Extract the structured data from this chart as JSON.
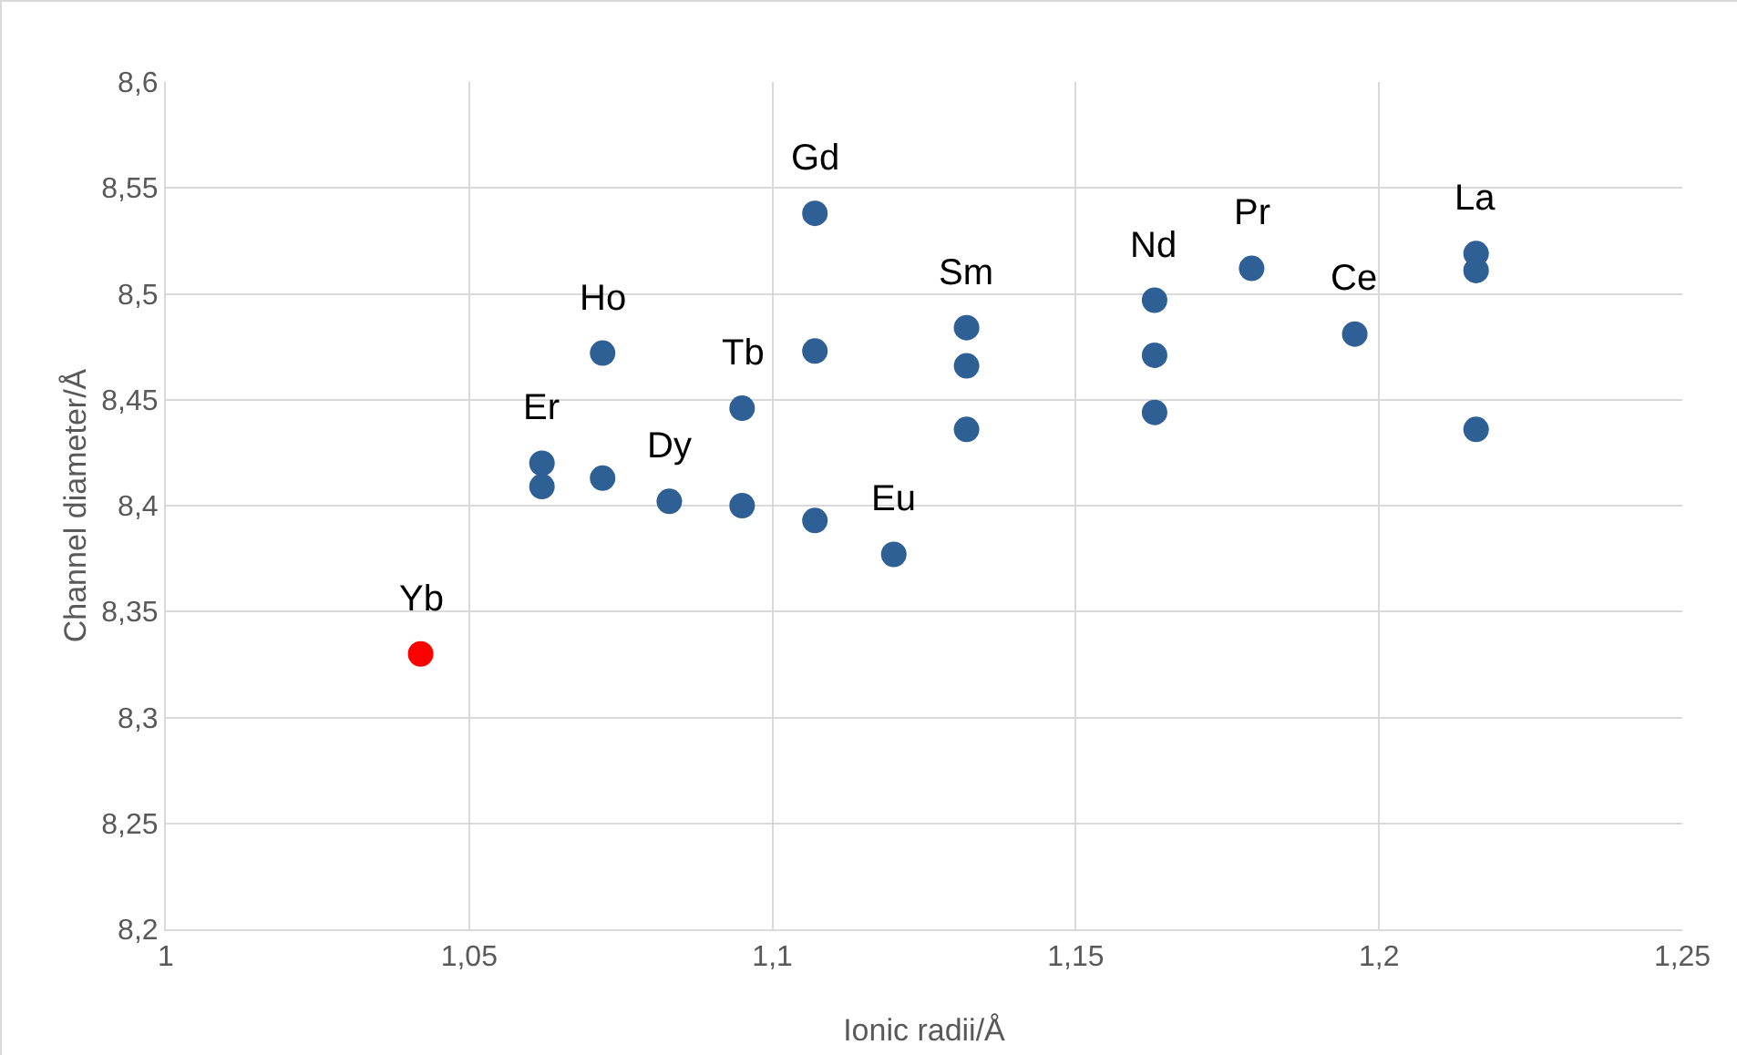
{
  "chart_data": {
    "type": "scatter",
    "xlabel": "Ionic radii/Å",
    "ylabel": "Channel diameter/Å",
    "x": [
      1.042,
      1.062,
      1.062,
      1.072,
      1.072,
      1.083,
      1.095,
      1.095,
      1.107,
      1.107,
      1.107,
      1.12,
      1.132,
      1.132,
      1.132,
      1.163,
      1.163,
      1.163,
      1.179,
      1.196,
      1.216,
      1.216,
      1.216
    ],
    "values": [
      8.33,
      8.42,
      8.409,
      8.472,
      8.413,
      8.402,
      8.446,
      8.4,
      8.538,
      8.473,
      8.393,
      8.377,
      8.484,
      8.466,
      8.436,
      8.497,
      8.471,
      8.444,
      8.512,
      8.481,
      8.519,
      8.511,
      8.436
    ],
    "colors": [
      "#ff0000",
      "#2e6095",
      "#2e6095",
      "#2e6095",
      "#2e6095",
      "#2e6095",
      "#2e6095",
      "#2e6095",
      "#2e6095",
      "#2e6095",
      "#2e6095",
      "#2e6095",
      "#2e6095",
      "#2e6095",
      "#2e6095",
      "#2e6095",
      "#2e6095",
      "#2e6095",
      "#2e6095",
      "#2e6095",
      "#2e6095",
      "#2e6095",
      "#2e6095"
    ],
    "marker": "circle",
    "xlim": [
      1,
      1.25
    ],
    "xticks": [
      {
        "value": 1,
        "label": "1"
      },
      {
        "value": 1.05,
        "label": "1,05"
      },
      {
        "value": 1.1,
        "label": "1,1"
      },
      {
        "value": 1.15,
        "label": "1,15"
      },
      {
        "value": 1.2,
        "label": "1,2"
      },
      {
        "value": 1.25,
        "label": "1,25"
      }
    ],
    "ylim": [
      8.2,
      8.6
    ],
    "yticks": [
      {
        "value": 8.2,
        "label": "8,2"
      },
      {
        "value": 8.25,
        "label": "8,25"
      },
      {
        "value": 8.3,
        "label": "8,3"
      },
      {
        "value": 8.35,
        "label": "8,35"
      },
      {
        "value": 8.4,
        "label": "8,4"
      },
      {
        "value": 8.45,
        "label": "8,45"
      },
      {
        "value": 8.5,
        "label": "8,5"
      },
      {
        "value": 8.55,
        "label": "8,55"
      },
      {
        "value": 8.6,
        "label": "8,6"
      }
    ],
    "grid": true,
    "annotations": [
      {
        "text": "Yb",
        "x": 1.042,
        "y": 8.33
      },
      {
        "text": "Er",
        "x": 1.062,
        "y": 8.42
      },
      {
        "text": "Ho",
        "x": 1.072,
        "y": 8.472
      },
      {
        "text": "Dy",
        "x": 1.083,
        "y": 8.402
      },
      {
        "text": "Tb",
        "x": 1.095,
        "y": 8.446
      },
      {
        "text": "Gd",
        "x": 1.107,
        "y": 8.538
      },
      {
        "text": "Eu",
        "x": 1.12,
        "y": 8.377
      },
      {
        "text": "Sm",
        "x": 1.132,
        "y": 8.484
      },
      {
        "text": "Nd",
        "x": 1.163,
        "y": 8.497
      },
      {
        "text": "Pr",
        "x": 1.179,
        "y": 8.512
      },
      {
        "text": "Ce",
        "x": 1.196,
        "y": 8.481
      },
      {
        "text": "La",
        "x": 1.216,
        "y": 8.519
      }
    ]
  }
}
